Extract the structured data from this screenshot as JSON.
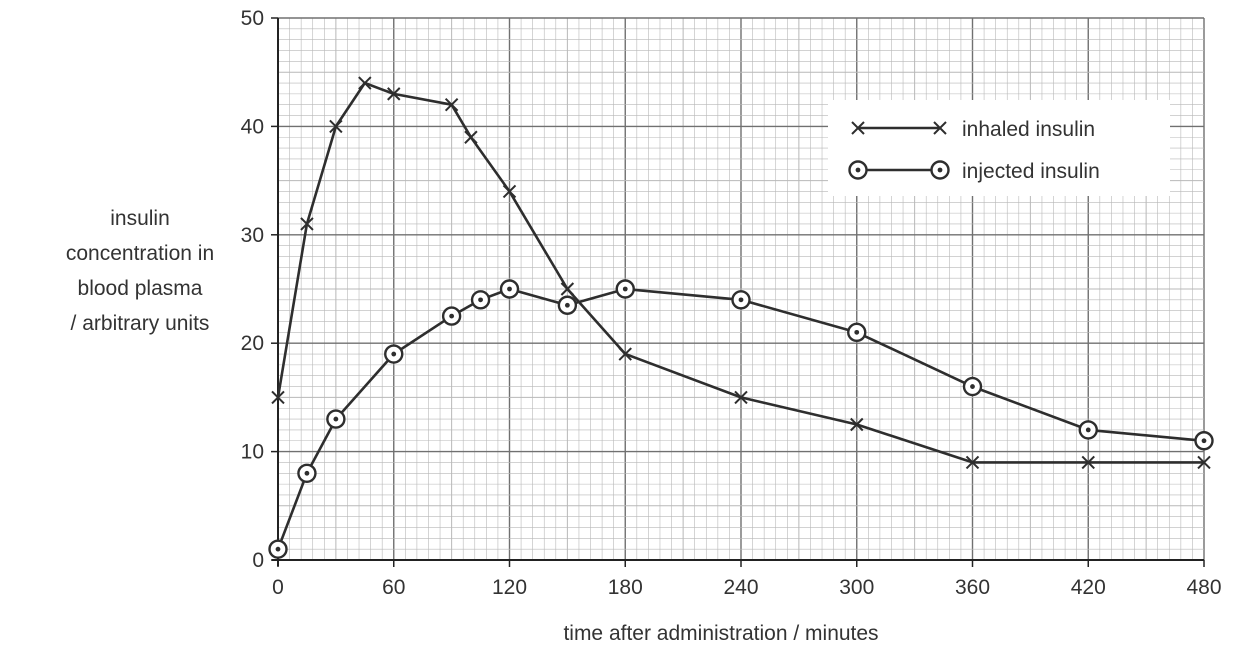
{
  "chart_data": {
    "type": "line",
    "title": "",
    "xlabel": "time after administration / minutes",
    "ylabel_lines": [
      "insulin",
      "concentration in",
      "blood plasma",
      "/ arbitrary units"
    ],
    "x_ticks": [
      0,
      60,
      120,
      180,
      240,
      300,
      360,
      420,
      480
    ],
    "y_ticks": [
      0,
      10,
      20,
      30,
      40,
      50
    ],
    "xlim": [
      0,
      480
    ],
    "ylim": [
      0,
      50
    ],
    "grid": "fine graph paper (major every 10 units x 2 min, fine subdivisions)",
    "x_scale_note": "non-uniform: 0–180 min spans 60-min per major interval widths as printed",
    "legend_position": "top-right",
    "series": [
      {
        "name": "inhaled insulin",
        "marker": "cross",
        "points": [
          [
            0,
            15
          ],
          [
            15,
            31
          ],
          [
            30,
            40
          ],
          [
            45,
            44
          ],
          [
            60,
            43
          ],
          [
            90,
            42
          ],
          [
            100,
            39
          ],
          [
            120,
            34
          ],
          [
            150,
            25
          ],
          [
            180,
            19
          ],
          [
            240,
            15
          ],
          [
            300,
            12.5
          ],
          [
            360,
            9
          ],
          [
            420,
            9
          ],
          [
            480,
            9
          ]
        ]
      },
      {
        "name": "injected insulin",
        "marker": "circle-dot",
        "points": [
          [
            0,
            1
          ],
          [
            15,
            8
          ],
          [
            30,
            13
          ],
          [
            60,
            19
          ],
          [
            90,
            22.5
          ],
          [
            105,
            24
          ],
          [
            120,
            25
          ],
          [
            150,
            23.5
          ],
          [
            180,
            25
          ],
          [
            240,
            24
          ],
          [
            300,
            21
          ],
          [
            360,
            16
          ],
          [
            420,
            12
          ],
          [
            480,
            11
          ]
        ]
      }
    ],
    "colors": {
      "line": "#2e2e2e",
      "grid_fine": "#b8b8b8",
      "grid_major": "#707070",
      "background": "#ffffff"
    }
  }
}
